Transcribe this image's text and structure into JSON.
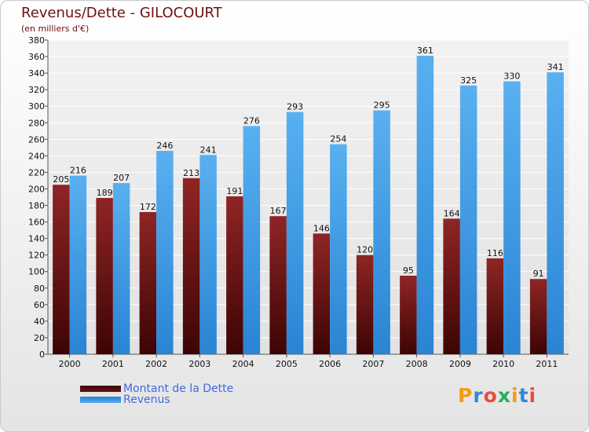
{
  "chart_data": {
    "type": "bar",
    "title": "Revenus/Dette - GILOCOURT",
    "subtitle": "(en milliers d'€)",
    "categories": [
      "2000",
      "2001",
      "2002",
      "2003",
      "2004",
      "2005",
      "2006",
      "2007",
      "2008",
      "2009",
      "2010",
      "2011"
    ],
    "series": [
      {
        "name": "Montant de la Dette",
        "color": "#8b1a1a",
        "values": [
          205,
          189,
          172,
          213,
          191,
          167,
          146,
          120,
          95,
          164,
          116,
          91
        ]
      },
      {
        "name": "Revenus",
        "color": "#4aa3e8",
        "values": [
          216,
          207,
          246,
          241,
          276,
          293,
          254,
          295,
          361,
          325,
          330,
          341
        ]
      }
    ],
    "ylim": [
      0,
      380
    ],
    "ytick_step": 20,
    "grid": true,
    "legend_position": "bottom-left"
  },
  "logo": {
    "letters": [
      "P",
      "r",
      "o",
      "x",
      "i",
      "t",
      "i"
    ],
    "colors": [
      "#f39c12",
      "#2e86de",
      "#e74c3c",
      "#27ae60",
      "#f39c12",
      "#2e86de",
      "#e74c3c"
    ]
  }
}
